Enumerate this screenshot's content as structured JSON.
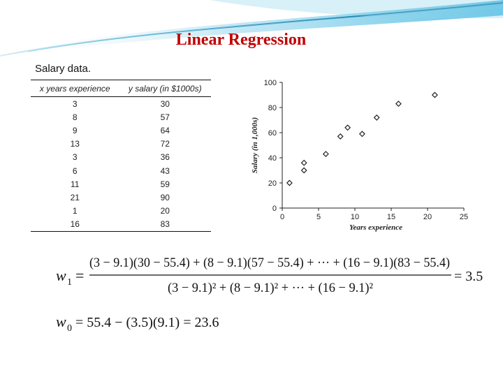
{
  "title": "Linear Regression",
  "table": {
    "caption": "Salary data.",
    "headers": [
      "x years experience",
      "y salary (in $1000s)"
    ],
    "rows": [
      [
        "3",
        "30"
      ],
      [
        "8",
        "57"
      ],
      [
        "9",
        "64"
      ],
      [
        "13",
        "72"
      ],
      [
        "3",
        "36"
      ],
      [
        "6",
        "43"
      ],
      [
        "11",
        "59"
      ],
      [
        "21",
        "90"
      ],
      [
        "1",
        "20"
      ],
      [
        "16",
        "83"
      ]
    ]
  },
  "chart_data": {
    "type": "scatter",
    "title": "",
    "xlabel": "Years experience",
    "ylabel": "Salary (in 1,000s)",
    "xlim": [
      0,
      25
    ],
    "ylim": [
      0,
      100
    ],
    "xticks": [
      "0",
      "5",
      "10",
      "15",
      "20",
      "25"
    ],
    "yticks": [
      "0",
      "20",
      "40",
      "60",
      "80",
      "100"
    ],
    "grid": false,
    "marker": "diamond",
    "points": [
      {
        "x": 3,
        "y": 30
      },
      {
        "x": 8,
        "y": 57
      },
      {
        "x": 9,
        "y": 64
      },
      {
        "x": 13,
        "y": 72
      },
      {
        "x": 3,
        "y": 36
      },
      {
        "x": 6,
        "y": 43
      },
      {
        "x": 11,
        "y": 59
      },
      {
        "x": 21,
        "y": 90
      },
      {
        "x": 1,
        "y": 20
      },
      {
        "x": 16,
        "y": 83
      }
    ]
  },
  "formulas": {
    "w1_label": "w",
    "w1_sub": "1",
    "equals": "=",
    "w1_numerator": "(3 − 9.1)(30 − 55.4) + (8 − 9.1)(57 − 55.4) + ··· + (16 − 9.1)(83 − 55.4)",
    "w1_denominator": "(3 − 9.1)² + (8 − 9.1)² + ··· + (16 − 9.1)²",
    "w1_result": "= 3.5",
    "w0_label": "w",
    "w0_sub": "0",
    "w0_expression": "= 55.4 − (3.5)(9.1) = 23.6"
  }
}
